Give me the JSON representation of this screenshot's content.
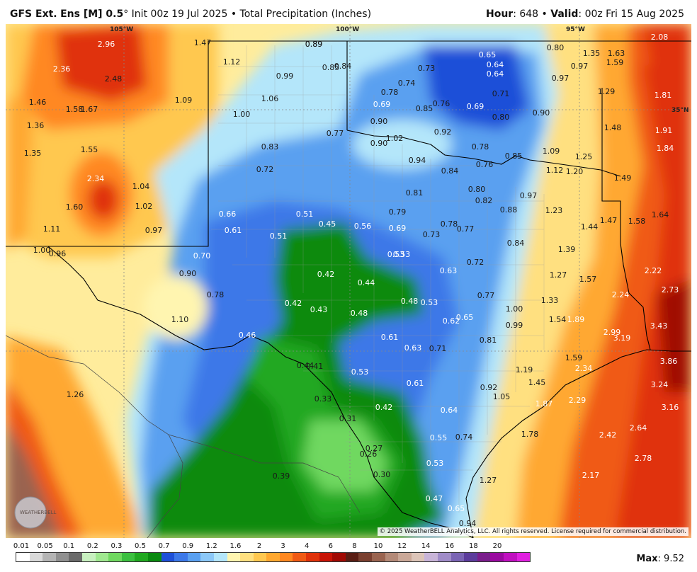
{
  "header": {
    "model": "GFS Ext.",
    "product": "Ens [M] 0.5",
    "degree_symbol": "°",
    "init": "Init 00z 19 Jul 2025",
    "bullet": "•",
    "field": "Total Precipitation (Inches)",
    "hour_label": "Hour",
    "hour_value": ": 648",
    "valid_label": "Valid",
    "valid_value": ": 00z Fri 15 Aug 2025"
  },
  "longitude_labels": [
    "105°W",
    "100°W",
    "95°W"
  ],
  "latitude_labels": [
    "35°N"
  ],
  "copyright": "© 2025 WeatherBELL Analytics, LLC. All rights reserved. License required for commercial distribution.",
  "logo_text": "WEATHERBELL",
  "max": {
    "label": "Max",
    "value": ": 9.52"
  },
  "legend": {
    "ticks": [
      "0.01",
      "0.05",
      "0.1",
      "0.2",
      "0.3",
      "0.5",
      "0.7",
      "0.9",
      "1.2",
      "1.6",
      "2",
      "3",
      "4",
      "6",
      "8",
      "10",
      "12",
      "14",
      "16",
      "18",
      "20"
    ],
    "colors": [
      "#ffffff",
      "#d9d9d9",
      "#b4b4b4",
      "#909090",
      "#6b6b6b",
      "#c8f0c0",
      "#a0e890",
      "#70d860",
      "#3cc040",
      "#20a820",
      "#0a8a10",
      "#1e50d8",
      "#3c78e8",
      "#5aa0f0",
      "#8cc8f8",
      "#b4e6fa",
      "#fff5b0",
      "#ffe080",
      "#ffc850",
      "#ffa830",
      "#ff8820",
      "#f05a14",
      "#e0320a",
      "#c81406",
      "#a00a04",
      "#5a1e14",
      "#7a4030",
      "#9a6450",
      "#b48a78",
      "#caa898",
      "#dcc4b8",
      "#c8b4d8",
      "#a08cc8",
      "#7a64b4",
      "#5c3c9c",
      "#7a1e8c",
      "#9a0aa0",
      "#c010c0",
      "#e020e0"
    ]
  },
  "map_values": [
    {
      "v": "2.96",
      "c": "white"
    },
    {
      "v": "2.36",
      "c": "white"
    },
    {
      "v": "2.48",
      "c": "dark"
    },
    {
      "v": "1.47",
      "c": "dark"
    },
    {
      "v": "1.46",
      "c": "dark"
    },
    {
      "v": "1.58",
      "c": "dark"
    },
    {
      "v": "1.67",
      "c": "dark"
    },
    {
      "v": "1.09",
      "c": "dark"
    },
    {
      "v": "1.36",
      "c": "dark"
    },
    {
      "v": "1.35",
      "c": "dark"
    },
    {
      "v": "1.55",
      "c": "dark"
    },
    {
      "v": "2.34",
      "c": "white"
    },
    {
      "v": "1.04",
      "c": "dark"
    },
    {
      "v": "1.60",
      "c": "dark"
    },
    {
      "v": "1.02",
      "c": "dark"
    },
    {
      "v": "1.11",
      "c": "dark"
    },
    {
      "v": "0.97",
      "c": "dark"
    },
    {
      "v": "1.00",
      "c": "dark"
    },
    {
      "v": "0.96",
      "c": "dark"
    },
    {
      "v": "0.89",
      "c": "dark"
    },
    {
      "v": "0.85",
      "c": "dark"
    },
    {
      "v": "1.12",
      "c": "dark"
    },
    {
      "v": "0.99",
      "c": "dark"
    },
    {
      "v": "1.06",
      "c": "dark"
    },
    {
      "v": "1.00",
      "c": "dark"
    },
    {
      "v": "0.83",
      "c": "dark"
    },
    {
      "v": "0.72",
      "c": "dark"
    },
    {
      "v": "0.66",
      "c": "white"
    },
    {
      "v": "0.61",
      "c": "white"
    },
    {
      "v": "0.51",
      "c": "white"
    },
    {
      "v": "0.51",
      "c": "white"
    },
    {
      "v": "0.45",
      "c": "white"
    },
    {
      "v": "0.56",
      "c": "white"
    },
    {
      "v": "0.70",
      "c": "white"
    },
    {
      "v": "0.90",
      "c": "dark"
    },
    {
      "v": "0.78",
      "c": "dark"
    },
    {
      "v": "1.10",
      "c": "dark"
    },
    {
      "v": "0.42",
      "c": "white"
    },
    {
      "v": "0.44",
      "c": "white"
    },
    {
      "v": "0.42",
      "c": "white"
    },
    {
      "v": "0.43",
      "c": "white"
    },
    {
      "v": "0.48",
      "c": "white"
    },
    {
      "v": "0.48",
      "c": "white"
    },
    {
      "v": "0.53",
      "c": "white"
    },
    {
      "v": "0.46",
      "c": "white"
    },
    {
      "v": "0.44",
      "c": "dark"
    },
    {
      "v": "0.41",
      "c": "dark"
    },
    {
      "v": "0.53",
      "c": "white"
    },
    {
      "v": "0.33",
      "c": "dark"
    },
    {
      "v": "0.31",
      "c": "dark"
    },
    {
      "v": "0.42",
      "c": "white"
    },
    {
      "v": "0.27",
      "c": "dark"
    },
    {
      "v": "0.26",
      "c": "dark"
    },
    {
      "v": "0.30",
      "c": "dark"
    },
    {
      "v": "0.39",
      "c": "dark"
    },
    {
      "v": "0.47",
      "c": "white"
    },
    {
      "v": "0.65",
      "c": "white"
    },
    {
      "v": "0.94",
      "c": "dark"
    },
    {
      "v": "0.89",
      "c": "dark"
    },
    {
      "v": "0.84",
      "c": "dark"
    },
    {
      "v": "0.85",
      "c": "dark"
    },
    {
      "v": "0.77",
      "c": "dark"
    },
    {
      "v": "0.69",
      "c": "white"
    },
    {
      "v": "0.65",
      "c": "white"
    },
    {
      "v": "0.73",
      "c": "dark"
    },
    {
      "v": "0.64",
      "c": "white"
    },
    {
      "v": "0.64",
      "c": "white"
    },
    {
      "v": "0.74",
      "c": "dark"
    },
    {
      "v": "0.78",
      "c": "dark"
    },
    {
      "v": "0.76",
      "c": "dark"
    },
    {
      "v": "0.69",
      "c": "white"
    },
    {
      "v": "0.71",
      "c": "dark"
    },
    {
      "v": "0.80",
      "c": "dark"
    },
    {
      "v": "0.80",
      "c": "dark"
    },
    {
      "v": "0.97",
      "c": "dark"
    },
    {
      "v": "0.97",
      "c": "dark"
    },
    {
      "v": "0.90",
      "c": "dark"
    },
    {
      "v": "0.90",
      "c": "dark"
    },
    {
      "v": "1.02",
      "c": "dark"
    },
    {
      "v": "0.92",
      "c": "dark"
    },
    {
      "v": "0.90",
      "c": "dark"
    },
    {
      "v": "0.94",
      "c": "dark"
    },
    {
      "v": "0.76",
      "c": "dark"
    },
    {
      "v": "0.78",
      "c": "dark"
    },
    {
      "v": "0.85",
      "c": "dark"
    },
    {
      "v": "0.84",
      "c": "dark"
    },
    {
      "v": "0.81",
      "c": "dark"
    },
    {
      "v": "0.80",
      "c": "dark"
    },
    {
      "v": "0.82",
      "c": "dark"
    },
    {
      "v": "0.79",
      "c": "dark"
    },
    {
      "v": "0.88",
      "c": "dark"
    },
    {
      "v": "0.97",
      "c": "dark"
    },
    {
      "v": "0.69",
      "c": "white"
    },
    {
      "v": "0.73",
      "c": "dark"
    },
    {
      "v": "0.78",
      "c": "dark"
    },
    {
      "v": "0.77",
      "c": "dark"
    },
    {
      "v": "0.84",
      "c": "dark"
    },
    {
      "v": "0.53",
      "c": "white"
    },
    {
      "v": "0.63",
      "c": "white"
    },
    {
      "v": "0.72",
      "c": "dark"
    },
    {
      "v": "0.77",
      "c": "dark"
    },
    {
      "v": "0.53",
      "c": "white"
    },
    {
      "v": "0.62",
      "c": "white"
    },
    {
      "v": "0.65",
      "c": "white"
    },
    {
      "v": "0.61",
      "c": "white"
    },
    {
      "v": "0.63",
      "c": "white"
    },
    {
      "v": "0.71",
      "c": "dark"
    },
    {
      "v": "0.81",
      "c": "dark"
    },
    {
      "v": "0.61",
      "c": "white"
    },
    {
      "v": "0.92",
      "c": "dark"
    },
    {
      "v": "1.05",
      "c": "dark"
    },
    {
      "v": "0.64",
      "c": "white"
    },
    {
      "v": "0.55",
      "c": "white"
    },
    {
      "v": "0.74",
      "c": "dark"
    },
    {
      "v": "0.53",
      "c": "white"
    },
    {
      "v": "1.35",
      "c": "dark"
    },
    {
      "v": "1.63",
      "c": "dark"
    },
    {
      "v": "1.59",
      "c": "dark"
    },
    {
      "v": "2.08",
      "c": "white"
    },
    {
      "v": "1.29",
      "c": "dark"
    },
    {
      "v": "1.81",
      "c": "white"
    },
    {
      "v": "1.48",
      "c": "dark"
    },
    {
      "v": "1.91",
      "c": "white"
    },
    {
      "v": "1.84",
      "c": "white"
    },
    {
      "v": "1.09",
      "c": "dark"
    },
    {
      "v": "1.25",
      "c": "dark"
    },
    {
      "v": "1.12",
      "c": "dark"
    },
    {
      "v": "1.20",
      "c": "dark"
    },
    {
      "v": "1.49",
      "c": "dark"
    },
    {
      "v": "1.23",
      "c": "dark"
    },
    {
      "v": "1.44",
      "c": "dark"
    },
    {
      "v": "1.47",
      "c": "dark"
    },
    {
      "v": "1.58",
      "c": "dark"
    },
    {
      "v": "1.64",
      "c": "dark"
    },
    {
      "v": "1.39",
      "c": "dark"
    },
    {
      "v": "1.27",
      "c": "dark"
    },
    {
      "v": "1.57",
      "c": "dark"
    },
    {
      "v": "2.22",
      "c": "white"
    },
    {
      "v": "2.73",
      "c": "white"
    },
    {
      "v": "1.33",
      "c": "dark"
    },
    {
      "v": "2.24",
      "c": "white"
    },
    {
      "v": "1.00",
      "c": "dark"
    },
    {
      "v": "0.99",
      "c": "dark"
    },
    {
      "v": "1.54",
      "c": "dark"
    },
    {
      "v": "1.89",
      "c": "white"
    },
    {
      "v": "2.99",
      "c": "white"
    },
    {
      "v": "3.19",
      "c": "white"
    },
    {
      "v": "3.43",
      "c": "white"
    },
    {
      "v": "1.59",
      "c": "dark"
    },
    {
      "v": "2.34",
      "c": "white"
    },
    {
      "v": "3.86",
      "c": "white"
    },
    {
      "v": "1.19",
      "c": "dark"
    },
    {
      "v": "1.45",
      "c": "dark"
    },
    {
      "v": "1.87",
      "c": "white"
    },
    {
      "v": "2.29",
      "c": "white"
    },
    {
      "v": "3.24",
      "c": "white"
    },
    {
      "v": "3.16",
      "c": "white"
    },
    {
      "v": "1.78",
      "c": "dark"
    },
    {
      "v": "2.42",
      "c": "white"
    },
    {
      "v": "2.64",
      "c": "white"
    },
    {
      "v": "2.78",
      "c": "white"
    },
    {
      "v": "2.17",
      "c": "white"
    },
    {
      "v": "1.27",
      "c": "dark"
    },
    {
      "v": "1.26",
      "c": "dark"
    }
  ]
}
